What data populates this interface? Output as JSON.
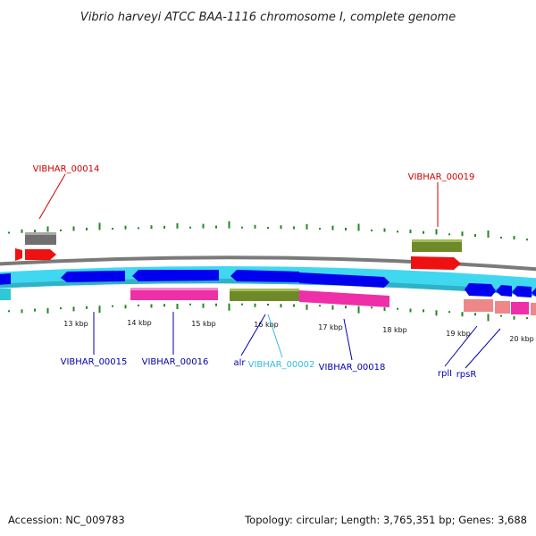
{
  "title": "Vibrio harveyi ATCC BAA-1116 chromosome I, complete genome",
  "footer": {
    "accession": "Accession: NC_009783",
    "summary": "Topology: circular; Length: 3,765,351 bp; Genes: 3,688"
  },
  "colors": {
    "cds": "#0000ee",
    "gene_light": "#40d8f0",
    "gene_dark": "#2fb2c8",
    "feature_pink": "#ee2fa8",
    "feature_olive": "#6e8a28",
    "feature_red": "#ee1111",
    "feature_gray": "#707070",
    "feature_salmon": "#ee8888",
    "skew_tick": "#228822",
    "backbone": "#888888",
    "label_red": "#cc0000",
    "label_blue": "#0000aa",
    "label_cyan": "#33bbdd"
  },
  "ticks": [
    {
      "label": "13 kbp"
    },
    {
      "label": "14 kbp"
    },
    {
      "label": "15 kbp"
    },
    {
      "label": "16 kbp"
    },
    {
      "label": "17 kbp"
    },
    {
      "label": "18 kbp"
    },
    {
      "label": "19 kbp"
    },
    {
      "label": "20 kbp"
    }
  ],
  "labels": [
    {
      "id": "vibhar-00014",
      "text": "VIBHAR_00014",
      "color": "red"
    },
    {
      "id": "vibhar-00019",
      "text": "VIBHAR_00019",
      "color": "red"
    },
    {
      "id": "vibhar-00015",
      "text": "VIBHAR_00015",
      "color": "blue"
    },
    {
      "id": "vibhar-00016",
      "text": "VIBHAR_00016",
      "color": "blue"
    },
    {
      "id": "alr",
      "text": "alr",
      "color": "blue"
    },
    {
      "id": "vibhar-00002",
      "text": "VIBHAR_00002",
      "color": "cyan"
    },
    {
      "id": "vibhar-00018",
      "text": "VIBHAR_00018",
      "color": "blue"
    },
    {
      "id": "rpll",
      "text": "rplI",
      "color": "blue"
    },
    {
      "id": "rpsr",
      "text": "rpsR",
      "color": "blue"
    }
  ]
}
